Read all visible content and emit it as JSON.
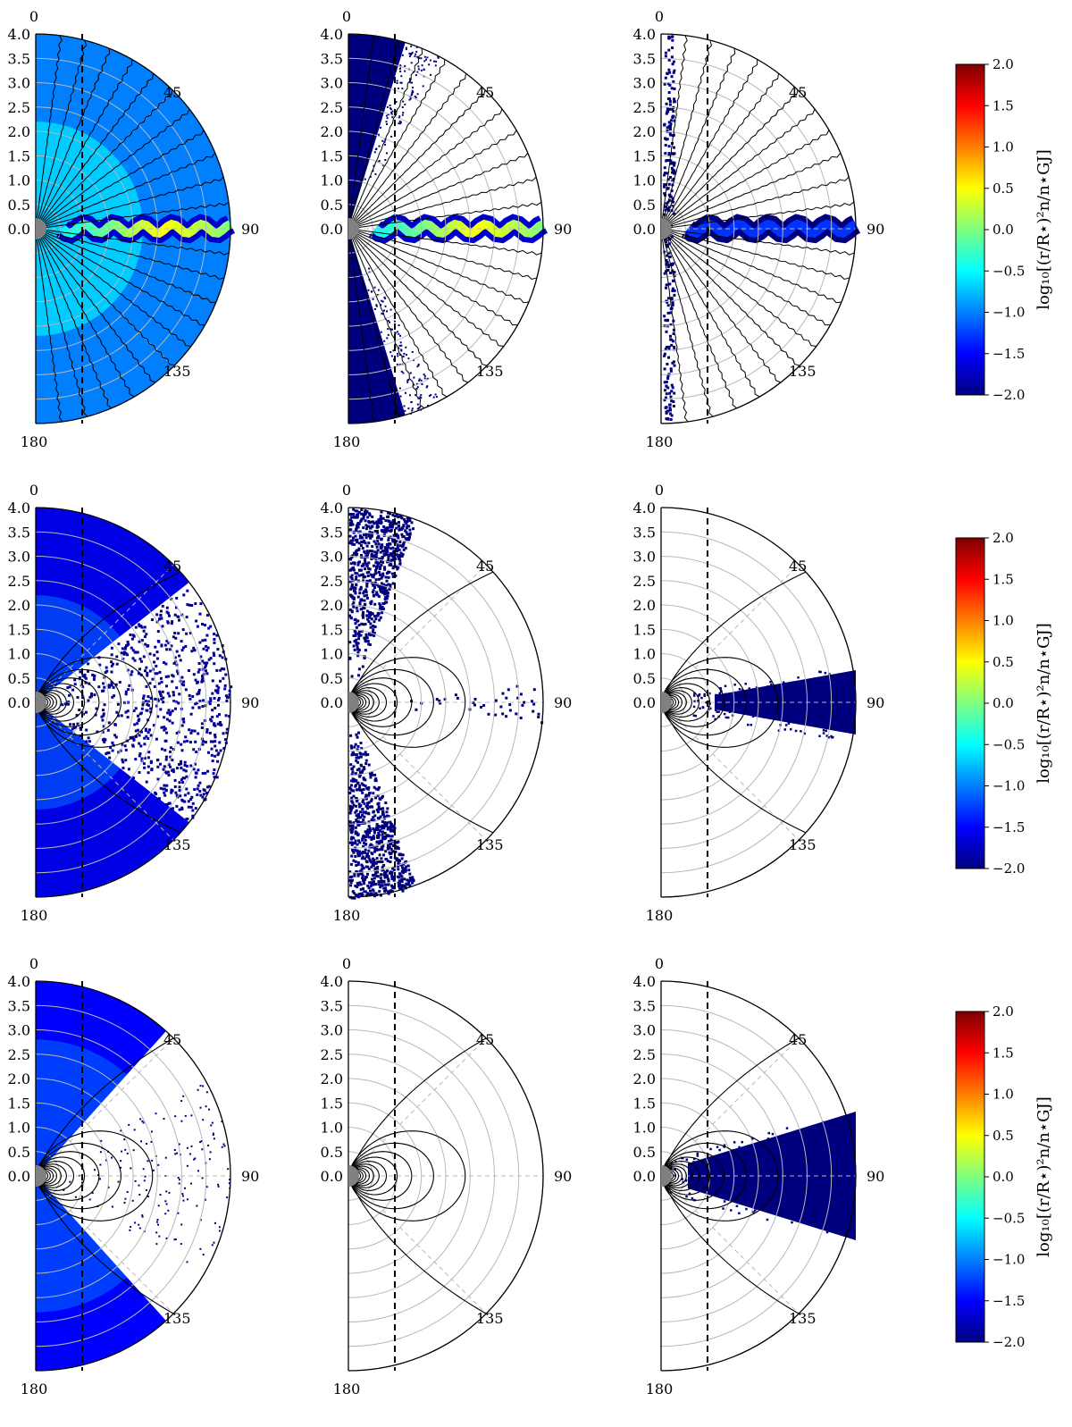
{
  "figure": {
    "colorbar": {
      "label": "log₁₀[(r/R⋆)²n/n⋆GJ]",
      "ticks": [
        "2.0",
        "1.5",
        "1.0",
        "0.5",
        "0.0",
        "−0.5",
        "−1.0",
        "−1.5",
        "−2.0"
      ],
      "colormap": [
        "#00007f",
        "#0000ff",
        "#007fff",
        "#00ffff",
        "#7fff7f",
        "#ffff00",
        "#ff7f00",
        "#ff0000",
        "#7f0000"
      ]
    },
    "radial_ticks": [
      "0.0",
      "0.5",
      "1.0",
      "1.5",
      "2.0",
      "2.5",
      "3.0",
      "3.5",
      "4.0"
    ],
    "angle_labels": [
      "0",
      "45",
      "90",
      "135",
      "180"
    ],
    "colors": {
      "background_field": "#3f8cf5",
      "dense_pairs": "#00007f",
      "current_sheet": "#ffe600",
      "star": "#808080"
    }
  },
  "chart_data": [
    {
      "type": "heatmap",
      "row": 1,
      "column": 1,
      "geometry": "polar half-disk",
      "field": "split monopole",
      "r_range": [
        0,
        4
      ],
      "theta_range": [
        0,
        180
      ],
      "color_range": [
        -2,
        2
      ],
      "fill": "full",
      "current_sheet_level": 0.5,
      "background_level": -1.0
    },
    {
      "type": "heatmap",
      "row": 1,
      "column": 2,
      "geometry": "polar half-disk",
      "field": "split monopole",
      "r_range": [
        0,
        4
      ],
      "theta_range": [
        0,
        180
      ],
      "color_range": [
        -2,
        2
      ],
      "fill": "polar wedges + equatorial sheet",
      "current_sheet_level": 0.4,
      "background_level": -2.0
    },
    {
      "type": "heatmap",
      "row": 1,
      "column": 3,
      "geometry": "polar half-disk",
      "field": "split monopole",
      "r_range": [
        0,
        4
      ],
      "theta_range": [
        0,
        180
      ],
      "color_range": [
        -2,
        2
      ],
      "fill": "axis strip + equatorial sheet",
      "current_sheet_level": -1.3,
      "background_level": -2.0
    },
    {
      "type": "heatmap",
      "row": 2,
      "column": 1,
      "geometry": "polar half-disk",
      "field": "dipole with open wind",
      "r_range": [
        0,
        4
      ],
      "theta_range": [
        0,
        180
      ],
      "color_range": [
        -2,
        2
      ],
      "fill": "full with sparse closed zone",
      "background_level": -1.6
    },
    {
      "type": "heatmap",
      "row": 2,
      "column": 2,
      "geometry": "polar half-disk",
      "field": "dipole with open wind",
      "r_range": [
        0,
        4
      ],
      "theta_range": [
        0,
        180
      ],
      "color_range": [
        -2,
        2
      ],
      "fill": "sparse polar wedges + equatorial sheet",
      "background_level": -2.0
    },
    {
      "type": "heatmap",
      "row": 2,
      "column": 3,
      "geometry": "polar half-disk",
      "field": "dipole with open wind",
      "r_range": [
        0,
        4
      ],
      "theta_range": [
        0,
        180
      ],
      "color_range": [
        -2,
        2
      ],
      "fill": "equatorial fan",
      "background_level": -2.0
    },
    {
      "type": "heatmap",
      "row": 3,
      "column": 1,
      "geometry": "polar half-disk",
      "field": "dipole",
      "r_range": [
        0,
        4
      ],
      "theta_range": [
        0,
        180
      ],
      "color_range": [
        -2,
        2
      ],
      "fill": "polar wedges",
      "background_level": -1.5
    },
    {
      "type": "heatmap",
      "row": 3,
      "column": 2,
      "geometry": "polar half-disk",
      "field": "dipole",
      "r_range": [
        0,
        4
      ],
      "theta_range": [
        0,
        180
      ],
      "color_range": [
        -2,
        2
      ],
      "fill": "empty",
      "background_level": null
    },
    {
      "type": "heatmap",
      "row": 3,
      "column": 3,
      "geometry": "polar half-disk",
      "field": "dipole",
      "r_range": [
        0,
        4
      ],
      "theta_range": [
        0,
        180
      ],
      "color_range": [
        -2,
        2
      ],
      "fill": "equatorial fan (wide)",
      "background_level": -2.0
    }
  ]
}
